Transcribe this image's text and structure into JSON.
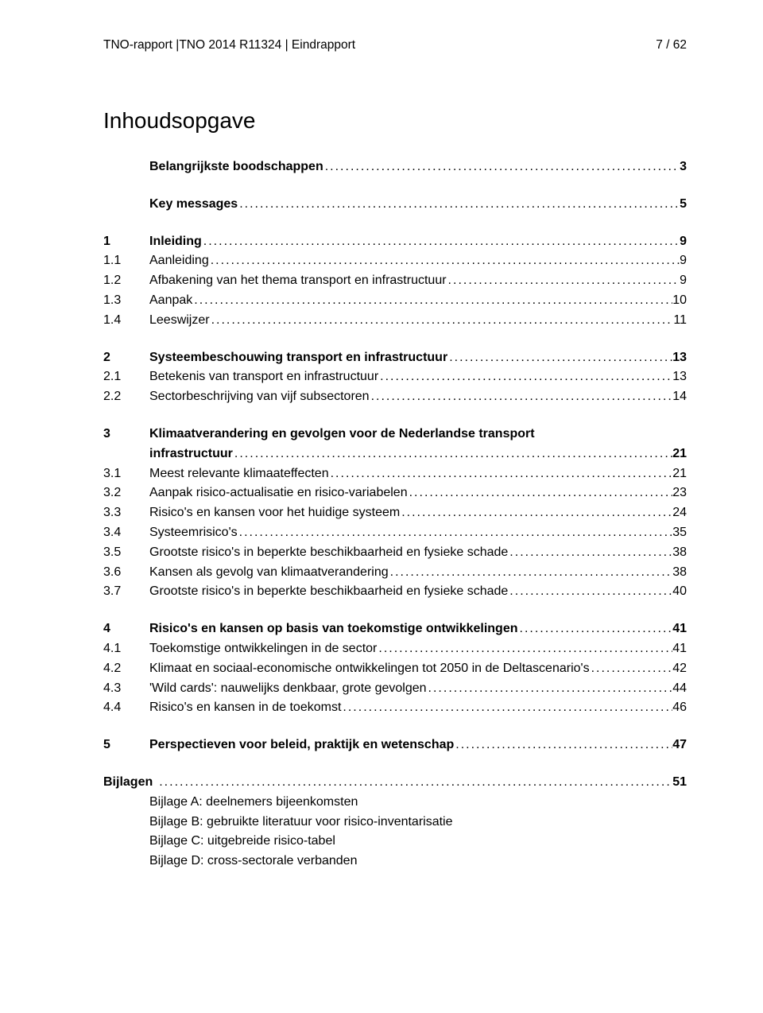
{
  "header": {
    "left": "TNO-rapport |TNO 2014 R11324 | Eindrapport",
    "right": "7 / 62"
  },
  "tocTitle": "Inhoudsopgave",
  "leaderDots": "......................................................................................................................................................................................",
  "entries": {
    "e0": {
      "num": "",
      "label": "Belangrijkste boodschappen",
      "page": "3",
      "bold": true
    },
    "e1": {
      "num": "",
      "label": "Key messages",
      "page": "5",
      "bold": true
    },
    "e2": {
      "num": "1",
      "label": "Inleiding",
      "page": "9",
      "bold": true
    },
    "e3": {
      "num": "1.1",
      "label": "Aanleiding",
      "page": "9",
      "bold": false
    },
    "e4": {
      "num": "1.2",
      "label": "Afbakening van het thema transport en infrastructuur",
      "page": "9",
      "bold": false
    },
    "e5": {
      "num": "1.3",
      "label": "Aanpak",
      "page": "10",
      "bold": false
    },
    "e6": {
      "num": "1.4",
      "label": "Leeswijzer",
      "page": "11",
      "bold": false
    },
    "e7": {
      "num": "2",
      "label": "Systeembeschouwing transport en infrastructuur",
      "page": "13",
      "bold": true
    },
    "e8": {
      "num": "2.1",
      "label": "Betekenis van transport en infrastructuur",
      "page": "13",
      "bold": false
    },
    "e9": {
      "num": "2.2",
      "label": "Sectorbeschrijving van vijf subsectoren",
      "page": "14",
      "bold": false
    },
    "e10a": {
      "num": "3",
      "label": "Klimaatverandering en gevolgen voor de Nederlandse transport",
      "page": "",
      "bold": true
    },
    "e10b": {
      "num": "",
      "label": "infrastructuur",
      "page": "21",
      "bold": true
    },
    "e11": {
      "num": "3.1",
      "label": "Meest relevante klimaateffecten",
      "page": "21",
      "bold": false
    },
    "e12": {
      "num": "3.2",
      "label": "Aanpak risico-actualisatie en risico-variabelen",
      "page": "23",
      "bold": false
    },
    "e13": {
      "num": "3.3",
      "label": "Risico's en kansen voor het huidige systeem",
      "page": "24",
      "bold": false
    },
    "e14": {
      "num": "3.4",
      "label": "Systeemrisico's",
      "page": "35",
      "bold": false
    },
    "e15": {
      "num": "3.5",
      "label": "Grootste risico's in beperkte beschikbaarheid en fysieke schade",
      "page": "38",
      "bold": false
    },
    "e16": {
      "num": "3.6",
      "label": "Kansen als gevolg van klimaatverandering",
      "page": "38",
      "bold": false
    },
    "e17": {
      "num": "3.7",
      "label": "Grootste risico's in beperkte beschikbaarheid en fysieke schade",
      "page": "40",
      "bold": false
    },
    "e18": {
      "num": "4",
      "label": "Risico's en kansen op basis van toekomstige ontwikkelingen",
      "page": "41",
      "bold": true
    },
    "e19": {
      "num": "4.1",
      "label": "Toekomstige ontwikkelingen in de sector",
      "page": "41",
      "bold": false
    },
    "e20": {
      "num": "4.2",
      "label": "Klimaat en sociaal-economische ontwikkelingen tot 2050 in de Deltascenario's",
      "page": "42",
      "bold": false
    },
    "e21": {
      "num": "4.3",
      "label": "'Wild cards': nauwelijks denkbaar, grote gevolgen",
      "page": "44",
      "bold": false
    },
    "e22": {
      "num": "4.4",
      "label": "Risico's en kansen in de toekomst",
      "page": "46",
      "bold": false
    },
    "e23": {
      "num": "5",
      "label": "Perspectieven voor beleid, praktijk en wetenschap",
      "page": "47",
      "bold": true
    },
    "bij": {
      "num": "Bijlagen",
      "label": "",
      "page": "51",
      "bold": true
    }
  },
  "bijlagen": {
    "a": "Bijlage A: deelnemers bijeenkomsten",
    "b": "Bijlage B: gebruikte literatuur voor risico-inventarisatie",
    "c": "Bijlage C: uitgebreide risico-tabel",
    "d": "Bijlage D: cross-sectorale verbanden"
  }
}
